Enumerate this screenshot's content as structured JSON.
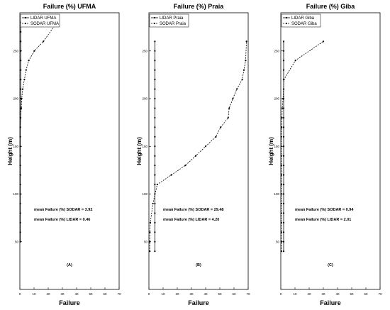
{
  "chart_data": [
    {
      "type": "line",
      "title": "Failure (%) UFMA",
      "xlabel": "Failure",
      "ylabel": "Height (m)",
      "xlim": [
        0,
        70
      ],
      "ylim": [
        0,
        290
      ],
      "xticks": [
        0,
        10,
        20,
        30,
        40,
        50,
        60,
        70
      ],
      "yticks": [
        50,
        100,
        150,
        200,
        250
      ],
      "legend_position": "top-left",
      "annotations": [
        "mean Failure (%) SODAR = 3.92",
        "mean Failure (%) LIDAR = 0.46"
      ],
      "panel_label": "(A)",
      "series": [
        {
          "name": "LIDAR UFMA",
          "style": "solid",
          "x": [
            0.3,
            0.3,
            0.3,
            0.3,
            0.3,
            0.3,
            0.3,
            0.3,
            0.3,
            0.3,
            0.3,
            0.3,
            0.3,
            0.5,
            0.6,
            0.6,
            0.6,
            0.6,
            0.6,
            0.6,
            0.6,
            0.6,
            0.6,
            0.6
          ],
          "y": [
            50,
            60,
            70,
            80,
            90,
            100,
            110,
            120,
            130,
            140,
            150,
            160,
            170,
            180,
            190,
            200,
            210,
            220,
            230,
            240,
            250,
            260,
            270,
            280
          ]
        },
        {
          "name": "SODAR UFMA",
          "style": "dashed",
          "x": [
            0.3,
            0.5,
            1,
            1.3,
            2,
            3.2,
            4.4,
            6.3,
            10.2,
            16.6,
            26.3
          ],
          "y": [
            170,
            180,
            190,
            200,
            210,
            220,
            230,
            240,
            250,
            260,
            280
          ]
        }
      ]
    },
    {
      "type": "line",
      "title": "Failure (%) Praia",
      "xlabel": "Failure",
      "ylabel": "Height (m)",
      "xlim": [
        0,
        70
      ],
      "ylim": [
        0,
        290
      ],
      "xticks": [
        0,
        10,
        20,
        30,
        40,
        50,
        60,
        70
      ],
      "yticks": [
        50,
        100,
        150,
        200,
        250
      ],
      "legend_position": "top-left",
      "annotations": [
        "mean Failure (%) SODAR = 29.48",
        "mean Failure (%) LIDAR = 4.20"
      ],
      "panel_label": "(B)",
      "series": [
        {
          "name": "LIDAR Praia",
          "style": "solid",
          "x": [
            4.2,
            4.2,
            4.2,
            4.2,
            4.2,
            4.2,
            4.2,
            4.2,
            4.2,
            4.2,
            4.2,
            4.2,
            4.2,
            4.2,
            4.2,
            4.2,
            4.2,
            4.2,
            4.2,
            4.2,
            4.2,
            4.2,
            4.2
          ],
          "y": [
            40,
            50,
            60,
            70,
            80,
            90,
            100,
            110,
            120,
            130,
            140,
            150,
            160,
            170,
            180,
            190,
            200,
            210,
            220,
            230,
            240,
            250,
            260
          ]
        },
        {
          "name": "SODAR Praia",
          "style": "dashed",
          "x": [
            0.6,
            0.6,
            0.7,
            1,
            2.8,
            5.9,
            15.8,
            25.7,
            33,
            40,
            47.2,
            50.6,
            55.9,
            56.6,
            59.2,
            62,
            65.8,
            67,
            68.2,
            68.8
          ],
          "y": [
            40,
            50,
            60,
            70,
            90,
            110,
            120,
            130,
            140,
            150,
            160,
            170,
            180,
            190,
            200,
            210,
            220,
            230,
            240,
            260
          ]
        }
      ]
    },
    {
      "type": "line",
      "title": "Failure (%) Giba",
      "xlabel": "Failure",
      "ylabel": "Height (m)",
      "xlim": [
        0,
        70
      ],
      "ylim": [
        0,
        290
      ],
      "xticks": [
        0,
        10,
        20,
        30,
        40,
        50,
        60,
        70
      ],
      "yticks": [
        50,
        100,
        150,
        200,
        250
      ],
      "legend_position": "top-left",
      "annotations": [
        "mean Failure (%) SODAR = 0.94",
        "mean Failure (%) LIDAR = 2.01"
      ],
      "panel_label": "(C)",
      "series": [
        {
          "name": "LIDAR Giba",
          "style": "solid",
          "x": [
            2,
            2,
            2,
            2,
            2,
            2,
            2,
            2,
            2,
            2,
            2,
            2,
            2,
            2,
            2,
            2,
            2,
            2,
            2,
            2,
            2,
            2,
            2
          ],
          "y": [
            40,
            50,
            60,
            70,
            80,
            90,
            100,
            110,
            120,
            130,
            140,
            150,
            160,
            170,
            180,
            190,
            200,
            210,
            220,
            230,
            240,
            250,
            260
          ]
        },
        {
          "name": "SODAR Giba",
          "style": "dashed",
          "x": [
            0.4,
            0.4,
            0.4,
            0.4,
            0.4,
            0.4,
            0.4,
            0.4,
            0.4,
            0.4,
            0.4,
            0.4,
            0.4,
            0.6,
            0.8,
            1,
            1.6,
            2.2,
            10.3,
            30
          ],
          "y": [
            40,
            50,
            60,
            70,
            80,
            90,
            100,
            110,
            120,
            130,
            140,
            150,
            160,
            170,
            180,
            190,
            200,
            220,
            240,
            260
          ]
        }
      ]
    }
  ]
}
